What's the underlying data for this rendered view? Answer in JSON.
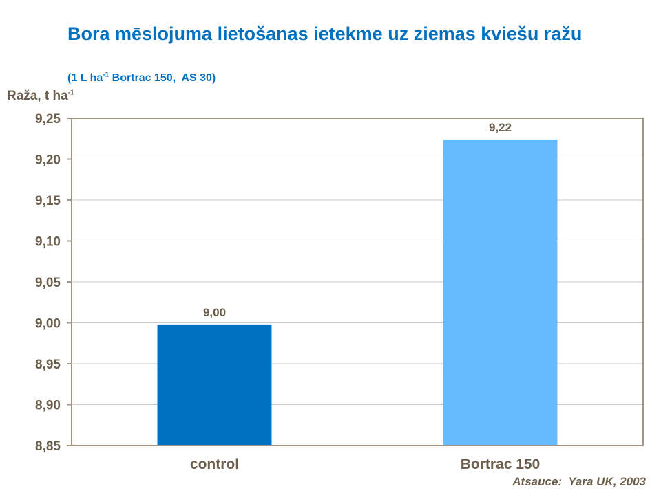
{
  "chart_data": {
    "type": "bar",
    "title": "Bora mēslojuma lietošanas ietekme uz ziemas kviešu ražu",
    "subtitle": {
      "pre": "(1 L ha",
      "sup": "-1",
      "post": " Bortrac 150,  AS 30)"
    },
    "ylabel": {
      "text": "Raža, t ha",
      "sup": "-1"
    },
    "xlabel": "",
    "categories": [
      "control",
      "Bortrac 150"
    ],
    "values": [
      8.998,
      9.224
    ],
    "data_labels": [
      "9,00",
      "9,22"
    ],
    "ylim": [
      8.85,
      9.25
    ],
    "yticks": [
      8.85,
      8.9,
      8.95,
      9.0,
      9.05,
      9.1,
      9.15,
      9.2,
      9.25
    ],
    "ytick_labels": [
      "8,85",
      "8,90",
      "8,95",
      "9,00",
      "9,05",
      "9,10",
      "9,15",
      "9,20",
      "9,25"
    ],
    "bar_colors": [
      "#0070c0",
      "#66bbff"
    ],
    "grid": true,
    "legend": "none",
    "source": "Atsauce:  Yara UK, 2003"
  }
}
